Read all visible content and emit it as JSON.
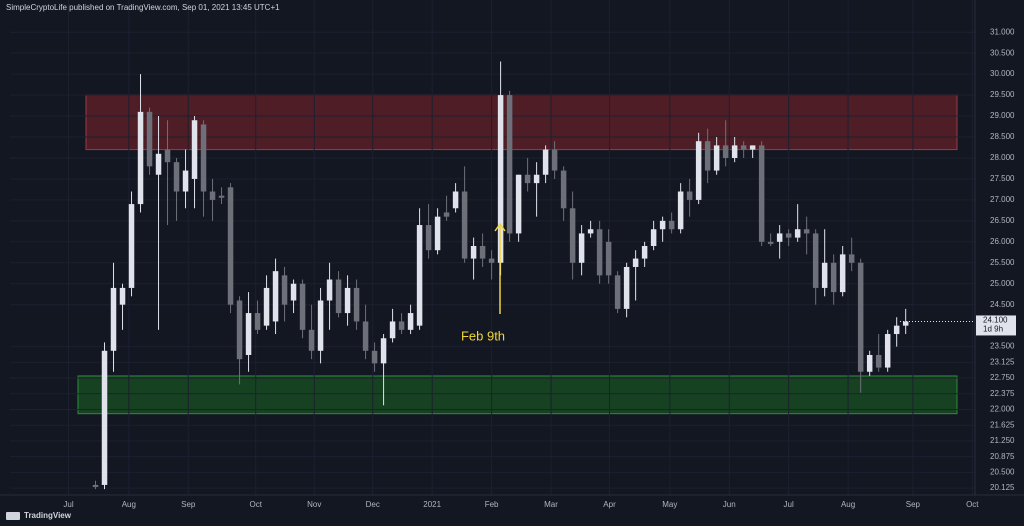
{
  "header": "SimpleCryptoLife published on TradingView.com, Sep 01, 2021 13:45 UTC+1",
  "footer": "TradingView",
  "chart_data": {
    "type": "candlestick",
    "up_color": "#e0e3eb",
    "down_color": "#6d7079",
    "ylim": [
      19.96,
      31.53
    ],
    "xlim": [
      -9.5,
      97.7
    ],
    "yticks": [
      {
        "value": 31,
        "label": "31.000"
      },
      {
        "value": 30.5,
        "label": "30.500"
      },
      {
        "value": 30,
        "label": "30.000"
      },
      {
        "value": 29.5,
        "label": "29.500"
      },
      {
        "value": 29,
        "label": "29.000"
      },
      {
        "value": 28.5,
        "label": "28.500"
      },
      {
        "value": 28,
        "label": "28.000"
      },
      {
        "value": 27.5,
        "label": "27.500"
      },
      {
        "value": 27,
        "label": "27.000"
      },
      {
        "value": 26.5,
        "label": "26.500"
      },
      {
        "value": 26,
        "label": "26.000"
      },
      {
        "value": 25.5,
        "label": "25.500"
      },
      {
        "value": 25,
        "label": "25.000"
      },
      {
        "value": 24.5,
        "label": "24.500"
      },
      {
        "value": 23.5,
        "label": "23.500"
      },
      {
        "value": 23.125,
        "label": "23.125"
      },
      {
        "value": 22.75,
        "label": "22.750"
      },
      {
        "value": 22.375,
        "label": "22.375"
      },
      {
        "value": 22,
        "label": "22.000"
      },
      {
        "value": 21.625,
        "label": "21.625"
      },
      {
        "value": 21.25,
        "label": "21.250"
      },
      {
        "value": 20.875,
        "label": "20.875"
      },
      {
        "value": 20.5,
        "label": "20.500"
      },
      {
        "value": 20.125,
        "label": "20.125"
      }
    ],
    "xticks": [
      {
        "value": -3,
        "label": "Jul"
      },
      {
        "value": 3.7,
        "label": "Aug"
      },
      {
        "value": 10.3,
        "label": "Sep"
      },
      {
        "value": 17.8,
        "label": "Oct"
      },
      {
        "value": 24.3,
        "label": "Nov"
      },
      {
        "value": 30.8,
        "label": "Dec"
      },
      {
        "value": 37.4,
        "label": "2021"
      },
      {
        "value": 44,
        "label": "Feb"
      },
      {
        "value": 50.6,
        "label": "Mar"
      },
      {
        "value": 57.1,
        "label": "Apr"
      },
      {
        "value": 63.8,
        "label": "May"
      },
      {
        "value": 70.4,
        "label": "Jun"
      },
      {
        "value": 77,
        "label": "Jul"
      },
      {
        "value": 83.6,
        "label": "Aug"
      },
      {
        "value": 90.8,
        "label": "Sep"
      },
      {
        "value": 97.4,
        "label": "Oct"
      }
    ],
    "grid": true,
    "price_label": {
      "value": 24.1,
      "label": "24.100"
    },
    "countdown": "1d 9h",
    "annotation": "Feb 9th",
    "zones": [
      {
        "low": 28.2,
        "high": 29.5,
        "color": "#5a1f27"
      },
      {
        "low": 21.9,
        "high": 22.8,
        "color": "#174a22"
      }
    ],
    "candles": [
      [
        20.2,
        20.3,
        20.1,
        20.15
      ],
      [
        20.2,
        23.6,
        20.1,
        23.4
      ],
      [
        23.4,
        25.5,
        22.9,
        24.9
      ],
      [
        24.5,
        25.0,
        23.9,
        24.9
      ],
      [
        24.9,
        27.2,
        24.7,
        26.9
      ],
      [
        26.9,
        30.0,
        26.7,
        29.1
      ],
      [
        29.1,
        29.2,
        27.6,
        27.8
      ],
      [
        27.6,
        29.0,
        23.9,
        28.1
      ],
      [
        28.2,
        28.9,
        26.4,
        27.9
      ],
      [
        27.9,
        28.0,
        26.5,
        27.2
      ],
      [
        27.2,
        28.2,
        26.8,
        27.7
      ],
      [
        27.5,
        29.0,
        26.8,
        28.9
      ],
      [
        28.8,
        28.9,
        26.6,
        27.2
      ],
      [
        27.2,
        27.5,
        26.5,
        27.0
      ],
      [
        27.1,
        27.3,
        26.9,
        27.05
      ],
      [
        27.3,
        27.4,
        24.3,
        24.5
      ],
      [
        24.6,
        24.7,
        22.6,
        23.2
      ],
      [
        23.3,
        24.8,
        22.9,
        24.3
      ],
      [
        24.3,
        24.6,
        23.8,
        23.9
      ],
      [
        24.0,
        25.2,
        23.9,
        24.9
      ],
      [
        24.1,
        25.6,
        23.8,
        25.3
      ],
      [
        25.2,
        25.4,
        24.1,
        24.5
      ],
      [
        24.6,
        25.1,
        24.3,
        25.0
      ],
      [
        25.0,
        25.1,
        23.7,
        23.9
      ],
      [
        23.9,
        24.5,
        23.2,
        23.4
      ],
      [
        23.4,
        24.9,
        23.1,
        24.6
      ],
      [
        24.6,
        25.5,
        23.9,
        25.1
      ],
      [
        25.1,
        25.3,
        24.2,
        24.3
      ],
      [
        24.3,
        25.2,
        24.0,
        24.9
      ],
      [
        24.9,
        25.1,
        23.9,
        24.1
      ],
      [
        24.1,
        24.5,
        23.2,
        23.4
      ],
      [
        23.4,
        23.6,
        22.9,
        23.1
      ],
      [
        23.1,
        23.8,
        22.1,
        23.7
      ],
      [
        23.7,
        24.4,
        23.6,
        24.1
      ],
      [
        24.1,
        24.3,
        23.8,
        23.9
      ],
      [
        23.9,
        24.5,
        23.8,
        24.3
      ],
      [
        24.0,
        26.8,
        23.9,
        26.4
      ],
      [
        26.4,
        26.9,
        25.6,
        25.8
      ],
      [
        25.8,
        26.8,
        25.7,
        26.6
      ],
      [
        26.7,
        27.1,
        26.5,
        26.6
      ],
      [
        26.8,
        27.4,
        26.7,
        27.2
      ],
      [
        27.2,
        27.8,
        25.5,
        25.6
      ],
      [
        25.6,
        26.1,
        25.1,
        25.9
      ],
      [
        25.9,
        26.2,
        25.4,
        25.6
      ],
      [
        25.6,
        25.8,
        25.1,
        25.5
      ],
      [
        25.5,
        30.3,
        25.2,
        29.5
      ],
      [
        29.5,
        29.6,
        26.0,
        26.2
      ],
      [
        26.2,
        27.6,
        26.0,
        27.6
      ],
      [
        27.6,
        28.0,
        27.2,
        27.4
      ],
      [
        27.4,
        27.9,
        26.6,
        27.6
      ],
      [
        27.6,
        28.3,
        27.4,
        28.2
      ],
      [
        28.2,
        28.4,
        27.5,
        27.7
      ],
      [
        27.7,
        27.8,
        26.5,
        26.8
      ],
      [
        26.8,
        27.2,
        25.1,
        25.5
      ],
      [
        25.5,
        26.4,
        25.2,
        26.2
      ],
      [
        26.2,
        26.5,
        26.1,
        26.3
      ],
      [
        26.3,
        26.5,
        25.0,
        25.2
      ],
      [
        26.0,
        26.3,
        25.0,
        25.2
      ],
      [
        25.2,
        25.3,
        24.3,
        24.4
      ],
      [
        24.4,
        25.5,
        24.2,
        25.4
      ],
      [
        25.4,
        25.8,
        24.6,
        25.6
      ],
      [
        25.6,
        26.0,
        25.4,
        25.9
      ],
      [
        25.9,
        26.5,
        25.8,
        26.3
      ],
      [
        26.3,
        26.6,
        26.0,
        26.5
      ],
      [
        26.5,
        26.7,
        26.2,
        26.3
      ],
      [
        26.3,
        27.4,
        26.2,
        27.2
      ],
      [
        27.2,
        27.5,
        26.6,
        27.0
      ],
      [
        27.0,
        28.6,
        26.9,
        28.4
      ],
      [
        28.4,
        28.7,
        27.4,
        27.7
      ],
      [
        27.7,
        28.5,
        27.6,
        28.3
      ],
      [
        28.3,
        28.9,
        27.8,
        28.0
      ],
      [
        28.0,
        28.5,
        27.9,
        28.3
      ],
      [
        28.3,
        28.4,
        28.0,
        28.2
      ],
      [
        28.2,
        28.3,
        28.0,
        28.3
      ],
      [
        28.3,
        28.4,
        25.9,
        26.0
      ],
      [
        26.0,
        26.2,
        25.9,
        25.95
      ],
      [
        26.0,
        26.4,
        25.6,
        26.2
      ],
      [
        26.2,
        26.3,
        25.9,
        26.1
      ],
      [
        26.1,
        26.9,
        26.0,
        26.3
      ],
      [
        26.3,
        26.6,
        25.7,
        26.2
      ],
      [
        26.2,
        26.3,
        24.5,
        24.9
      ],
      [
        24.9,
        26.3,
        24.7,
        25.5
      ],
      [
        25.5,
        25.7,
        24.5,
        24.8
      ],
      [
        24.8,
        25.9,
        24.7,
        25.7
      ],
      [
        25.7,
        26.1,
        25.3,
        25.5
      ],
      [
        25.5,
        25.6,
        22.4,
        22.9
      ],
      [
        22.9,
        23.4,
        22.8,
        23.3
      ],
      [
        23.3,
        23.8,
        22.9,
        23.0
      ],
      [
        23.0,
        23.9,
        22.9,
        23.8
      ],
      [
        23.8,
        24.2,
        23.5,
        24.0
      ],
      [
        24.0,
        24.4,
        23.8,
        24.1
      ]
    ]
  }
}
